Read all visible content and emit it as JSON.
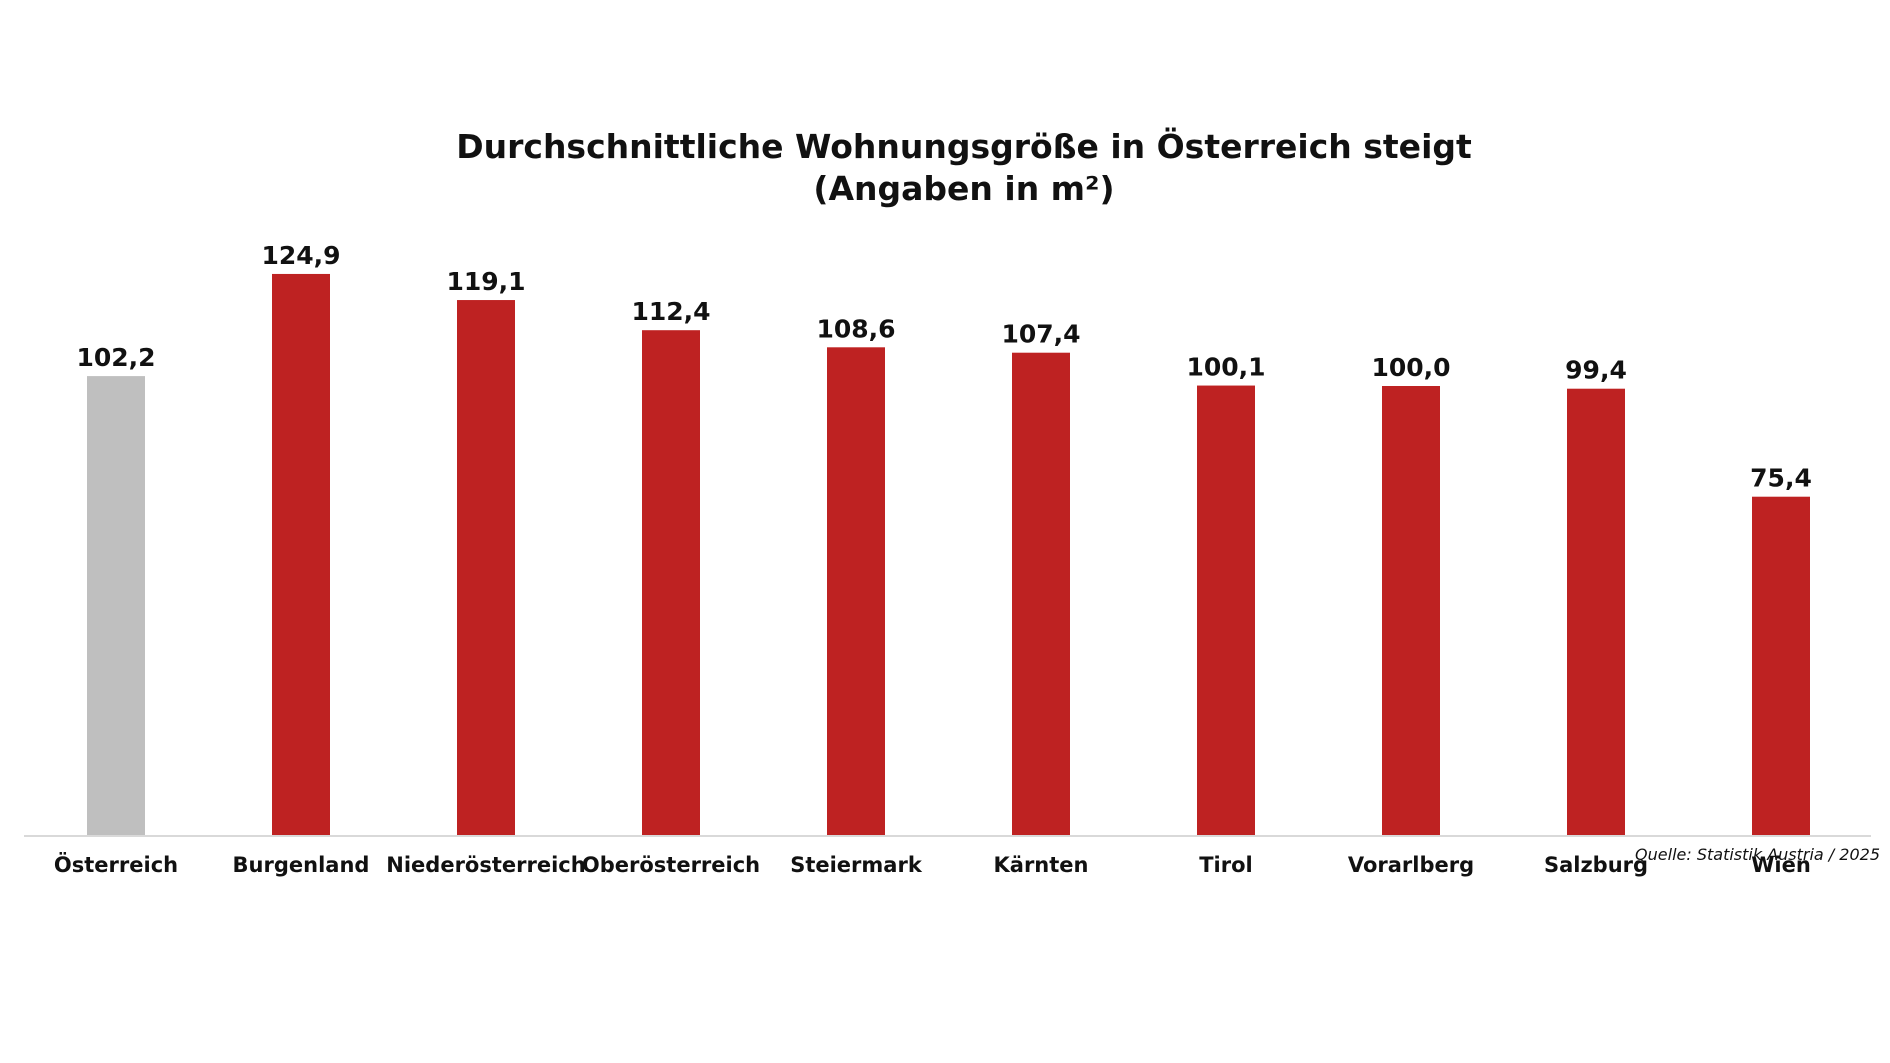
{
  "chart_data": {
    "type": "bar",
    "title": "Durchschnittliche Wohnungsgröße in Österreich steigt",
    "subtitle": "(Angaben in m²)",
    "categories": [
      "Österreich",
      "Burgenland",
      "Niederösterreich",
      "Oberösterreich",
      "Steiermark",
      "Kärnten",
      "Tirol",
      "Vorarlberg",
      "Salzburg",
      "Wien"
    ],
    "values": [
      102.2,
      124.9,
      119.1,
      112.4,
      108.6,
      107.4,
      100.1,
      100.0,
      99.4,
      75.4
    ],
    "value_labels": [
      "102,2",
      "124,9",
      "119,1",
      "112,4",
      "108,6",
      "107,4",
      "100,1",
      "100,0",
      "99,4",
      "75,4"
    ],
    "bar_colors": [
      "#bfbfbf",
      "#be2222",
      "#be2222",
      "#be2222",
      "#be2222",
      "#be2222",
      "#be2222",
      "#be2222",
      "#be2222",
      "#be2222"
    ],
    "ylim": [
      0,
      125
    ],
    "grid": false,
    "xlabel": "",
    "ylabel": "",
    "source": "Quelle: Statistik Austria / 2025"
  }
}
